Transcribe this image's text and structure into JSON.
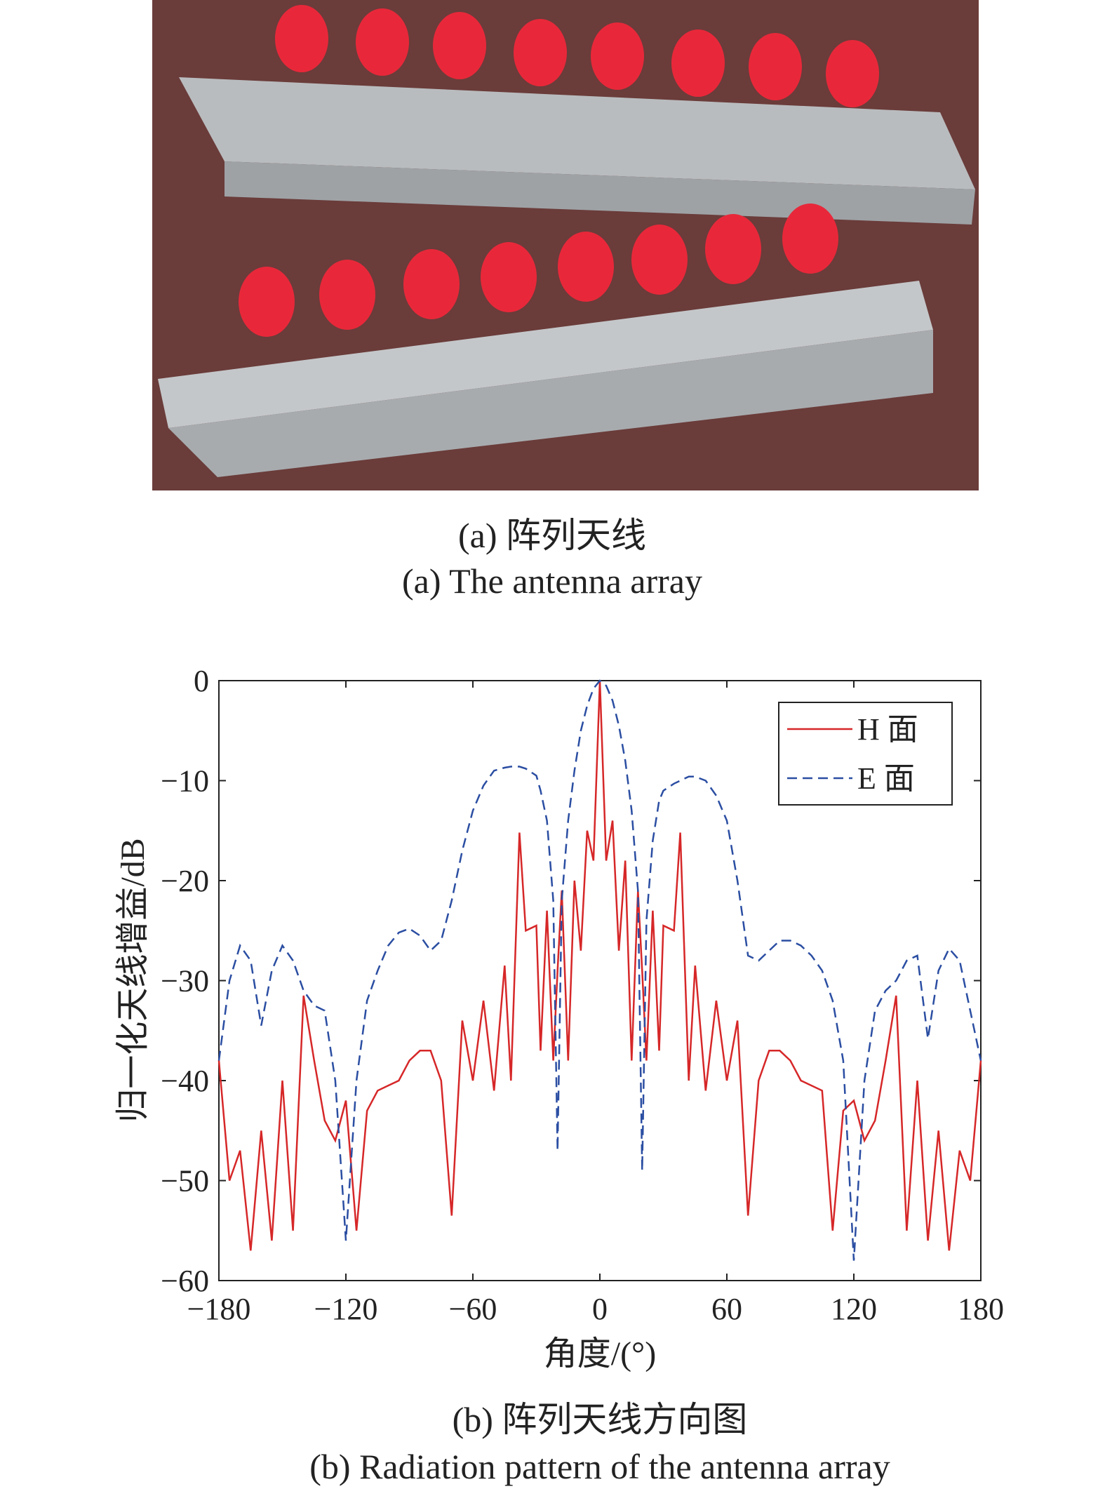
{
  "photo_caption": [
    "(a) 阵列天线",
    "(a) The antenna array"
  ],
  "chart_data": {
    "type": "line",
    "caption": [
      "(b) 阵列天线方向图",
      "(b) Radiation pattern of the antenna array"
    ],
    "xlabel": "角度/(°)",
    "ylabel": "归一化天线增益/dB",
    "xlim": [
      -180,
      180
    ],
    "ylim": [
      -60,
      0
    ],
    "xticks": [
      {
        "value": -180,
        "label": "−180"
      },
      {
        "value": -120,
        "label": "−120"
      },
      {
        "value": -60,
        "label": "−60"
      },
      0,
      60,
      120,
      180
    ],
    "yticks": [
      0,
      {
        "value": -10,
        "label": "−10"
      },
      {
        "value": -20,
        "label": "−20"
      },
      {
        "value": -30,
        "label": "−30"
      },
      {
        "value": -40,
        "label": "−40"
      },
      {
        "value": -50,
        "label": "−50"
      },
      {
        "value": -60,
        "label": "−60"
      }
    ],
    "legend": "upper right",
    "x": [
      -180,
      -175,
      -170,
      -165,
      -160,
      -155,
      -150,
      -145,
      -140,
      -135,
      -130,
      -125,
      -120,
      -115,
      -110,
      -105,
      -100,
      -95,
      -90,
      -85,
      -80,
      -75,
      -70,
      -65,
      -60,
      -55,
      -50,
      -45,
      -42,
      -38,
      -35,
      -30,
      -28,
      -25,
      -22,
      -20,
      -18,
      -15,
      -12,
      -9,
      -6,
      -3,
      0,
      3,
      6,
      9,
      12,
      15,
      18,
      20,
      22,
      25,
      28,
      30,
      35,
      38,
      42,
      45,
      50,
      55,
      60,
      65,
      70,
      75,
      80,
      85,
      90,
      95,
      100,
      105,
      110,
      115,
      120,
      125,
      130,
      135,
      140,
      145,
      150,
      155,
      160,
      165,
      170,
      175,
      180
    ],
    "series": [
      {
        "name": "H 面",
        "color": "#d62728",
        "style": "solid",
        "values": [
          -38,
          -50,
          -47,
          -57,
          -45,
          -56,
          -40,
          -55,
          -31.5,
          -38,
          -44,
          -46,
          -42,
          -55,
          -43,
          -41,
          -40.5,
          -40,
          -38,
          -37,
          -37,
          -40,
          -53.5,
          -34,
          -40,
          -32,
          -41,
          -28.5,
          -40,
          -15.2,
          -25,
          -24.5,
          -37,
          -23,
          -38,
          -29,
          -21,
          -38,
          -20,
          -27,
          -15,
          -18,
          0,
          -18,
          -14,
          -27,
          -18,
          -38,
          -21,
          -29,
          -38,
          -23,
          -37,
          -24.5,
          -25,
          -15.2,
          -40,
          -28.5,
          -41,
          -32,
          -40,
          -34,
          -53.5,
          -40,
          -37,
          -37,
          -38,
          -40,
          -40.5,
          -41,
          -55,
          -43,
          -42,
          -46,
          -44,
          -38,
          -31.5,
          -55,
          -40,
          -56,
          -45,
          -57,
          -47,
          -50,
          -38
        ]
      },
      {
        "name": "E 面",
        "color": "#2b4ea2",
        "style": "dashed",
        "values": [
          -38,
          -30,
          -26.5,
          -28,
          -34.5,
          -29,
          -26.5,
          -28,
          -31,
          -32.5,
          -33,
          -40,
          -56,
          -40,
          -32,
          -29,
          -26.5,
          -25.2,
          -24.8,
          -25.5,
          -27,
          -26,
          -22,
          -17,
          -13,
          -10.5,
          -9,
          -8.7,
          -8.6,
          -8.6,
          -8.8,
          -9.5,
          -11,
          -14,
          -22,
          -47,
          -22,
          -14,
          -9,
          -5,
          -2.5,
          -0.8,
          0,
          -0.5,
          -2,
          -4.5,
          -8,
          -13,
          -21,
          -49,
          -24,
          -16,
          -12,
          -11,
          -10.3,
          -10,
          -9.6,
          -9.6,
          -10,
          -11.5,
          -14,
          -20,
          -27.5,
          -28,
          -27,
          -26,
          -26,
          -26.5,
          -27.5,
          -29,
          -32,
          -38,
          -58,
          -40,
          -33,
          -31,
          -30,
          -28,
          -27.5,
          -35.8,
          -29,
          -26.8,
          -28,
          -33,
          -38
        ]
      }
    ]
  }
}
